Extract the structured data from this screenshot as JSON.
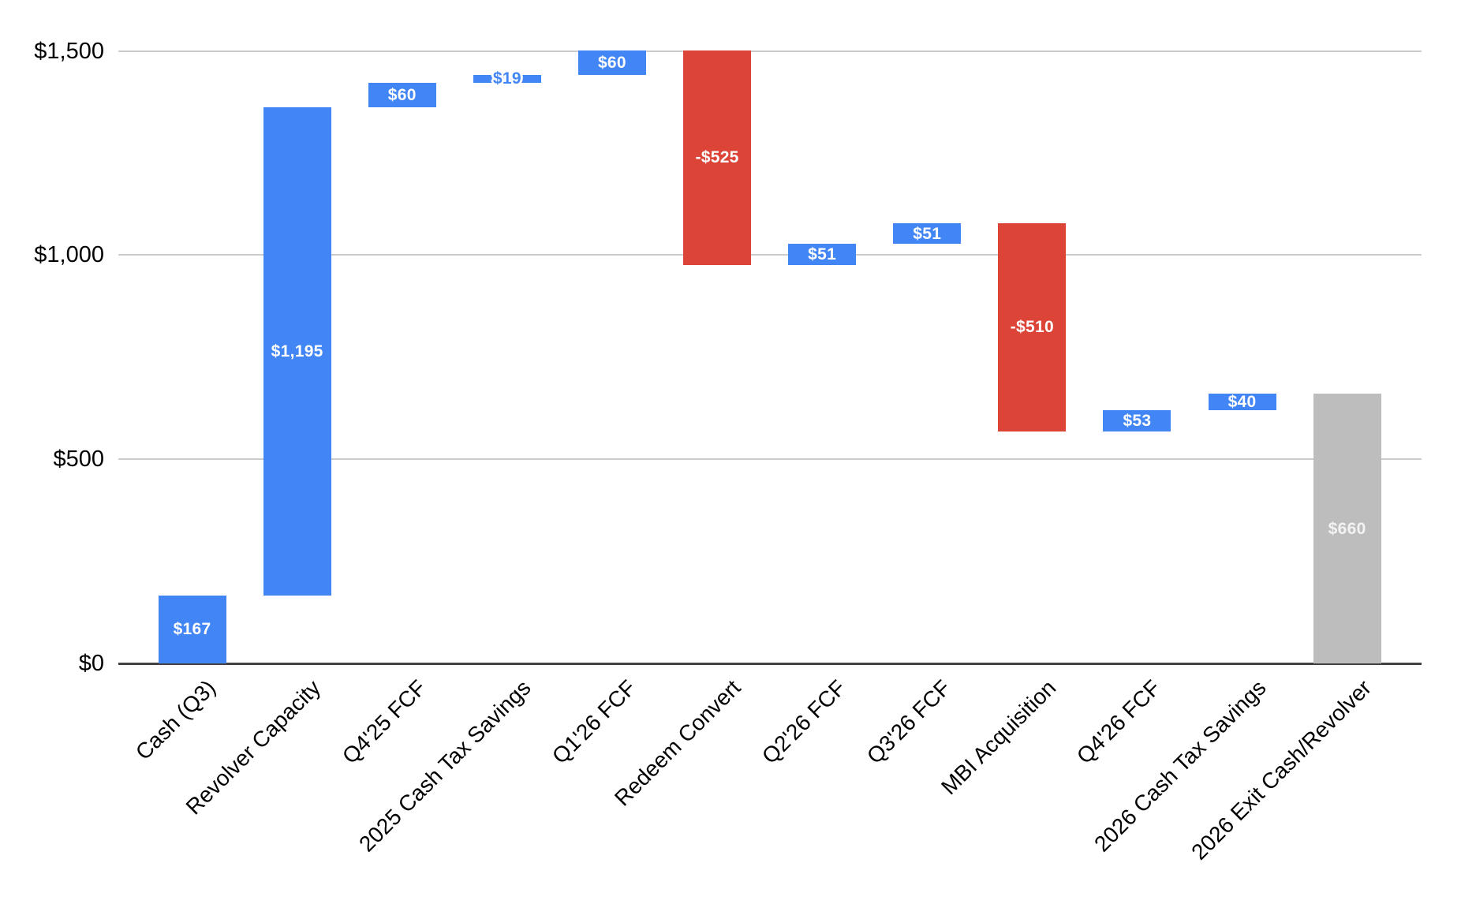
{
  "page": {
    "background": "#ffffff"
  },
  "chart_data": {
    "type": "bar",
    "subtype": "waterfall",
    "title": "",
    "legend": "none",
    "grid": true,
    "background": "#ffffff",
    "y_axis": {
      "min": 0,
      "max": 1500,
      "interval": 500,
      "ticks": [
        {
          "value": 0,
          "label": "$0"
        },
        {
          "value": 500,
          "label": "$500"
        },
        {
          "value": 1000,
          "label": "$1,000"
        },
        {
          "value": 1500,
          "label": "$1,500"
        }
      ]
    },
    "x_axis": {
      "label_rotation_deg": 45
    },
    "colors": {
      "increase": "#4285F4",
      "decrease": "#DB4437",
      "total": "#BDBDBD",
      "annotation_inside": "#ffffff",
      "annotation_total": "#F3F3F3",
      "gridline": "#cccccc",
      "baseline": "#424242",
      "axis_text": "#000000"
    },
    "categories": [
      "Cash (Q3)",
      "Revolver Capacity",
      "Q4'25 FCF",
      "2025 Cash Tax Savings",
      "Q1'26 FCF",
      "Redeem Convert",
      "Q2'26 FCF",
      "Q3'26 FCF",
      "MBI Acquisition",
      "Q4'26 FCF",
      "2026 Cash Tax Savings",
      "2026 Exit Cash/Revolver"
    ],
    "bars": [
      {
        "category": "Cash (Q3)",
        "value": 167,
        "annotation": "$167",
        "start": 0,
        "end": 167,
        "role": "increase",
        "annotation_style": "inside"
      },
      {
        "category": "Revolver Capacity",
        "value": 1195,
        "annotation": "$1,195",
        "start": 167,
        "end": 1362,
        "role": "increase",
        "annotation_style": "inside"
      },
      {
        "category": "Q4'25 FCF",
        "value": 60,
        "annotation": "$60",
        "start": 1362,
        "end": 1422,
        "role": "increase",
        "annotation_style": "inside"
      },
      {
        "category": "2025 Cash Tax Savings",
        "value": 19,
        "annotation": "$19",
        "start": 1422,
        "end": 1441,
        "role": "increase",
        "annotation_style": "halo"
      },
      {
        "category": "Q1'26 FCF",
        "value": 60,
        "annotation": "$60",
        "start": 1441,
        "end": 1501,
        "role": "increase",
        "annotation_style": "inside"
      },
      {
        "category": "Redeem Convert",
        "value": -525,
        "annotation": "-$525",
        "start": 1501,
        "end": 976,
        "role": "decrease",
        "annotation_style": "inside"
      },
      {
        "category": "Q2'26 FCF",
        "value": 51,
        "annotation": "$51",
        "start": 976,
        "end": 1027,
        "role": "increase",
        "annotation_style": "inside"
      },
      {
        "category": "Q3'26 FCF",
        "value": 51,
        "annotation": "$51",
        "start": 1027,
        "end": 1078,
        "role": "increase",
        "annotation_style": "inside"
      },
      {
        "category": "MBI Acquisition",
        "value": -510,
        "annotation": "-$510",
        "start": 1078,
        "end": 568,
        "role": "decrease",
        "annotation_style": "inside"
      },
      {
        "category": "Q4'26 FCF",
        "value": 53,
        "annotation": "$53",
        "start": 568,
        "end": 621,
        "role": "increase",
        "annotation_style": "inside"
      },
      {
        "category": "2026 Cash Tax Savings",
        "value": 40,
        "annotation": "$40",
        "start": 621,
        "end": 661,
        "role": "increase",
        "annotation_style": "inside"
      },
      {
        "category": "2026 Exit Cash/Revolver",
        "value": 660,
        "annotation": "$660",
        "start": 0,
        "end": 660,
        "role": "total",
        "annotation_style": "inside"
      }
    ]
  }
}
